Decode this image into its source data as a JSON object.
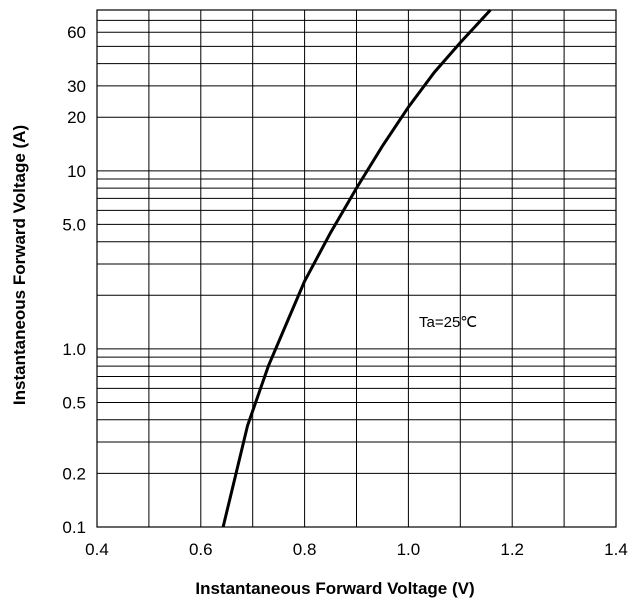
{
  "chart_data": {
    "type": "line",
    "xlabel": "Instantaneous Forward Voltage (V)",
    "ylabel": "Instantaneous Forward Voltage (A)",
    "xlim": [
      0.4,
      1.4
    ],
    "ylim": [
      0.1,
      80
    ],
    "y_scale": "log",
    "grid": true,
    "x_ticks": [
      {
        "value": 0.4,
        "label": "0.4"
      },
      {
        "value": 0.6,
        "label": "0.6"
      },
      {
        "value": 0.8,
        "label": "0.8"
      },
      {
        "value": 1.0,
        "label": "1.0"
      },
      {
        "value": 1.2,
        "label": "1.2"
      },
      {
        "value": 1.4,
        "label": "1.4"
      }
    ],
    "x_gridlines": [
      0.5,
      0.6,
      0.7,
      0.8,
      0.9,
      1.0,
      1.1,
      1.2,
      1.3
    ],
    "y_ticks": [
      {
        "value": 0.1,
        "label": "0.1"
      },
      {
        "value": 0.2,
        "label": "0.2"
      },
      {
        "value": 0.5,
        "label": "0.5"
      },
      {
        "value": 1.0,
        "label": "1.0"
      },
      {
        "value": 5.0,
        "label": "5.0"
      },
      {
        "value": 10,
        "label": "10"
      },
      {
        "value": 20,
        "label": "20"
      },
      {
        "value": 30,
        "label": "30"
      },
      {
        "value": 60,
        "label": "60"
      }
    ],
    "y_gridlines": [
      0.2,
      0.3,
      0.4,
      0.5,
      0.6,
      0.7,
      0.8,
      0.9,
      1,
      2,
      3,
      4,
      5,
      6,
      7,
      8,
      9,
      10,
      20,
      30,
      40,
      50,
      60,
      70
    ],
    "annotation": "Ta=25℃",
    "series": [
      {
        "x": [
          0.643,
          0.66,
          0.69,
          0.73,
          0.77,
          0.8,
          0.85,
          0.9,
          0.95,
          1.0,
          1.05,
          1.1,
          1.158
        ],
        "y": [
          0.1,
          0.16,
          0.37,
          0.8,
          1.5,
          2.4,
          4.5,
          8.0,
          13.8,
          22.8,
          35.8,
          52.5,
          80
        ]
      }
    ]
  }
}
